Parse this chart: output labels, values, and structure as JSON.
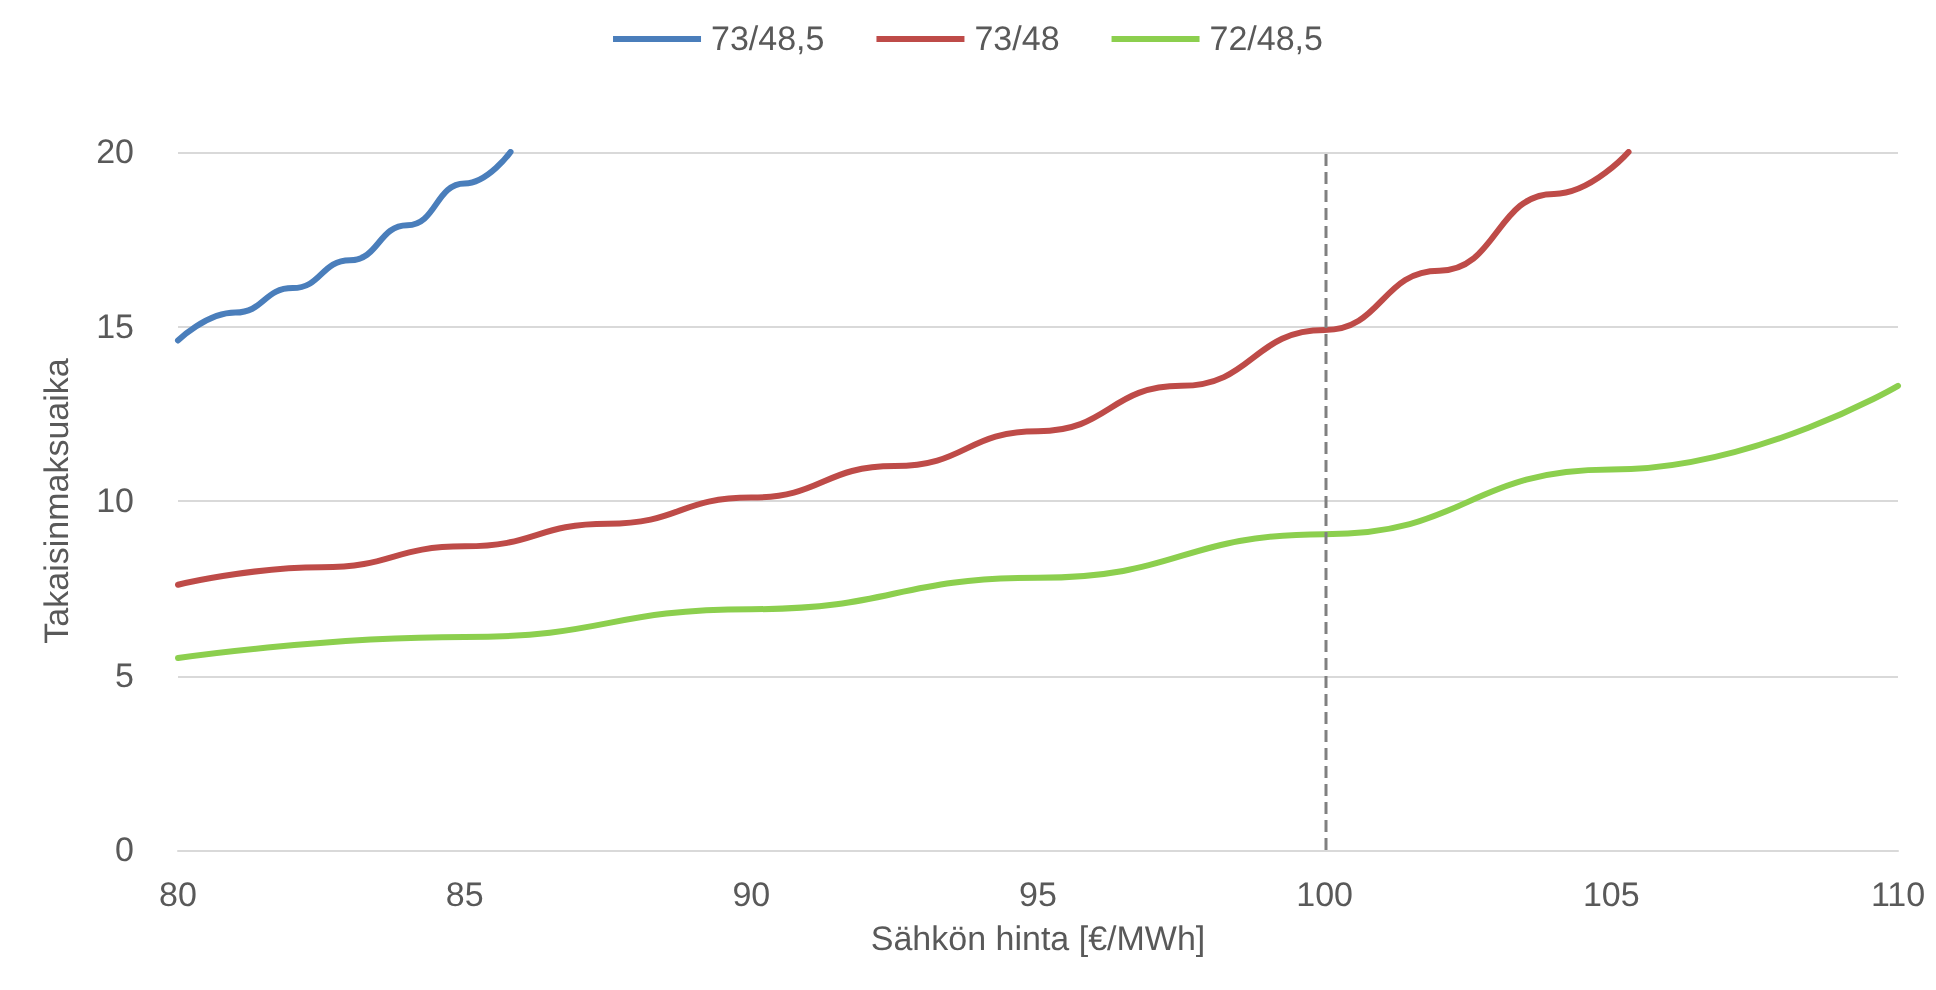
{
  "chart_data": {
    "type": "line",
    "xlabel": "Sähkön hinta [€/MWh]",
    "ylabel": "Takaisinmaksuaika",
    "xlim": [
      80,
      110
    ],
    "xticks": [
      80,
      85,
      90,
      95,
      100,
      105,
      110
    ],
    "ylim": [
      0,
      20
    ],
    "yticks": [
      0,
      5,
      10,
      15,
      20
    ],
    "grid": "y",
    "legend": "top",
    "marker": "none",
    "line_style": "solid",
    "ref_lines": [
      {
        "axis": "x",
        "value": 100,
        "color": "#808080",
        "line_style": "dashed"
      }
    ],
    "series": [
      {
        "name": "73/48,5",
        "color": "#4a7ebb",
        "x": [
          80,
          81,
          82,
          83,
          84,
          85,
          85.8
        ],
        "values": [
          14.6,
          15.4,
          16.1,
          16.9,
          17.9,
          19.1,
          20
        ]
      },
      {
        "name": "73/48",
        "color": "#be4b48",
        "x": [
          80,
          82.5,
          85,
          87.5,
          90,
          92.5,
          95,
          97.5,
          100,
          102,
          104,
          105.3
        ],
        "values": [
          7.6,
          8.1,
          8.7,
          9.35,
          10.1,
          11,
          12,
          13.3,
          14.9,
          16.6,
          18.8,
          20
        ]
      },
      {
        "name": "72/48,5",
        "color": "#8ccf4e",
        "x": [
          80,
          85,
          90,
          95,
          100,
          105,
          110
        ],
        "values": [
          5.5,
          6.1,
          6.9,
          7.8,
          9.05,
          10.9,
          13.3
        ]
      }
    ]
  }
}
